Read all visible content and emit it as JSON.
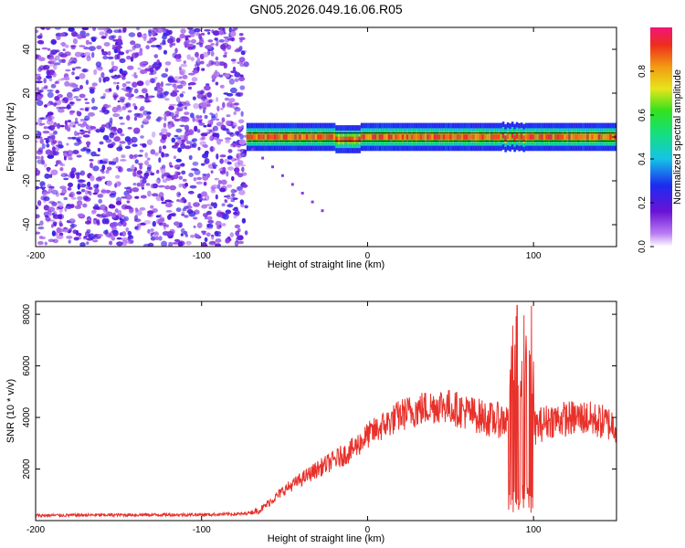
{
  "title": "GN05.2026.049.16.06.R05",
  "chart_data": [
    {
      "type": "heatmap",
      "name": "spectrogram",
      "xlabel": "Height of straight line (km)",
      "ylabel": "Frequency (Hz)",
      "xlim": [
        -200,
        150
      ],
      "ylim": [
        -50,
        50
      ],
      "xticks": [
        -200,
        -100,
        0,
        100
      ],
      "yticks": [
        -40,
        -20,
        0,
        20,
        40
      ],
      "noise_region_x": [
        -200,
        -73
      ],
      "noise_amplitude_range": [
        0.05,
        0.25
      ],
      "signal_start_x": -73,
      "signal_frequency": 0,
      "signal_amplitude": 0.95,
      "signal_halfwidth_hz": 2,
      "colorbar": {
        "label": "Normalized spectral amplitude",
        "range": [
          0,
          1
        ],
        "ticks": [
          0.0,
          0.2,
          0.4,
          0.6,
          0.8
        ]
      }
    },
    {
      "type": "line",
      "name": "snr",
      "xlabel": "Height of straight line (km)",
      "ylabel": "SNR (10 * v/v)",
      "xlim": [
        -200,
        150
      ],
      "ylim": [
        0,
        8500
      ],
      "xticks": [
        -200,
        -100,
        0,
        100
      ],
      "yticks": [
        2000,
        4000,
        6000,
        8000
      ],
      "color": "#e8312a",
      "series": [
        {
          "name": "SNR",
          "x": [
            -200,
            -150,
            -100,
            -75,
            -65,
            -50,
            -30,
            -10,
            0,
            10,
            20,
            30,
            45,
            60,
            75,
            85,
            90,
            95,
            100,
            110,
            130,
            150
          ],
          "values": [
            200,
            220,
            230,
            260,
            400,
            1200,
            2000,
            2700,
            3300,
            3700,
            4100,
            4300,
            4500,
            4200,
            3900,
            3900,
            4000,
            3900,
            3600,
            3900,
            4000,
            3700
          ]
        }
      ],
      "burst_region_x": [
        85,
        100
      ],
      "burst_range": [
        100,
        8500
      ]
    }
  ]
}
